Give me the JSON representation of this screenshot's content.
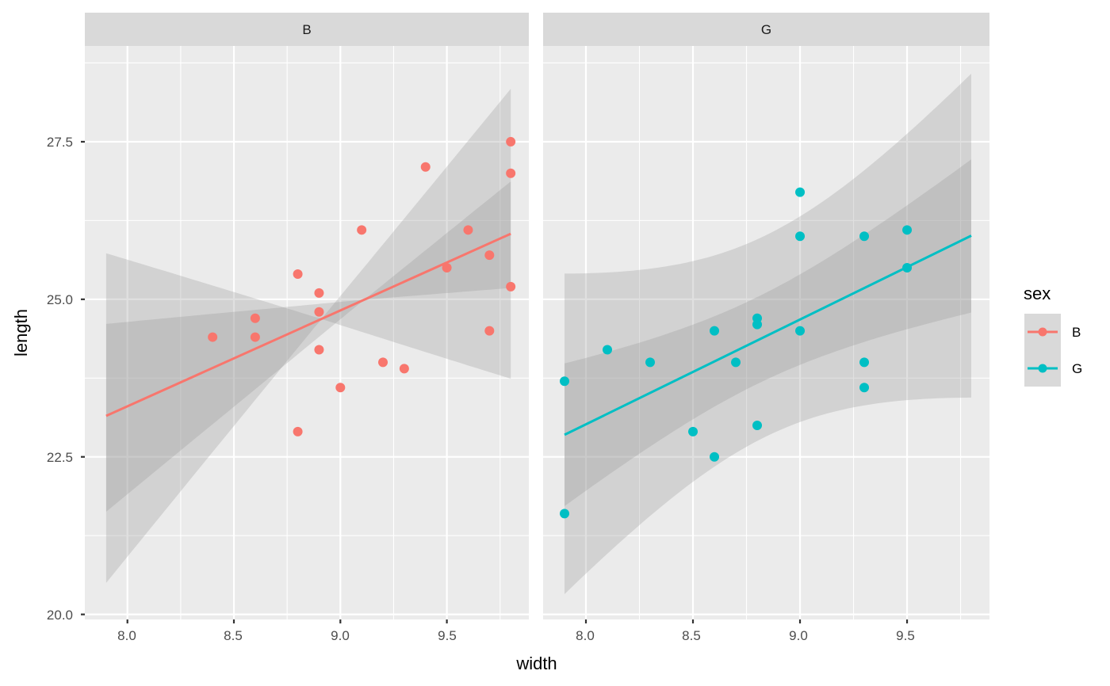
{
  "chart_data": {
    "type": "scatter",
    "title": "",
    "xlabel": "width",
    "ylabel": "length",
    "xlim": [
      7.8,
      9.885
    ],
    "ylim": [
      19.92,
      29.02
    ],
    "x_ticks": [
      "8.0",
      "8.5",
      "9.0",
      "9.5"
    ],
    "y_ticks": [
      "20.0",
      "22.5",
      "25.0",
      "27.5"
    ],
    "grid": true,
    "facet_by": "sex",
    "legend": {
      "title": "sex",
      "position": "right",
      "entries": [
        {
          "label": "B",
          "color": "#F8766D"
        },
        {
          "label": "G",
          "color": "#00BFC4"
        }
      ]
    },
    "panels": [
      {
        "strip": "B",
        "color": "#F8766D",
        "points": [
          {
            "x": 8.4,
            "y": 24.4
          },
          {
            "x": 8.6,
            "y": 24.7
          },
          {
            "x": 8.6,
            "y": 24.4
          },
          {
            "x": 8.8,
            "y": 25.4
          },
          {
            "x": 8.8,
            "y": 22.9
          },
          {
            "x": 8.9,
            "y": 25.1
          },
          {
            "x": 8.9,
            "y": 24.8
          },
          {
            "x": 8.9,
            "y": 24.2
          },
          {
            "x": 9.0,
            "y": 23.6
          },
          {
            "x": 9.1,
            "y": 26.1
          },
          {
            "x": 9.2,
            "y": 24.0
          },
          {
            "x": 9.3,
            "y": 23.9
          },
          {
            "x": 9.4,
            "y": 27.1
          },
          {
            "x": 9.5,
            "y": 25.5
          },
          {
            "x": 9.6,
            "y": 26.1
          },
          {
            "x": 9.7,
            "y": 25.7
          },
          {
            "x": 9.7,
            "y": 24.5
          },
          {
            "x": 9.8,
            "y": 27.5
          },
          {
            "x": 9.8,
            "y": 27.0
          },
          {
            "x": 9.8,
            "y": 25.2
          }
        ],
        "fit": {
          "x_range": [
            7.9,
            9.8
          ],
          "line": [
            23.15,
            26.04
          ],
          "confidence_lower": [
            21.63,
            25.18
          ],
          "confidence_upper": [
            24.61,
            26.87
          ],
          "prediction_lower": [
            20.5,
            23.74
          ],
          "prediction_upper": [
            25.73,
            28.34
          ]
        }
      },
      {
        "strip": "G",
        "color": "#00BFC4",
        "points": [
          {
            "x": 7.9,
            "y": 23.7
          },
          {
            "x": 7.9,
            "y": 21.6
          },
          {
            "x": 8.1,
            "y": 24.2
          },
          {
            "x": 8.3,
            "y": 24.0
          },
          {
            "x": 8.5,
            "y": 22.9
          },
          {
            "x": 8.6,
            "y": 24.5
          },
          {
            "x": 8.6,
            "y": 22.5
          },
          {
            "x": 8.7,
            "y": 24.0
          },
          {
            "x": 8.8,
            "y": 24.7
          },
          {
            "x": 8.8,
            "y": 24.6
          },
          {
            "x": 8.8,
            "y": 23.0
          },
          {
            "x": 9.0,
            "y": 26.7
          },
          {
            "x": 9.0,
            "y": 26.0
          },
          {
            "x": 9.0,
            "y": 24.5
          },
          {
            "x": 9.3,
            "y": 26.0
          },
          {
            "x": 9.3,
            "y": 24.0
          },
          {
            "x": 9.3,
            "y": 23.6
          },
          {
            "x": 9.5,
            "y": 26.1
          },
          {
            "x": 9.5,
            "y": 25.5
          }
        ],
        "fit": {
          "x_range": [
            7.9,
            9.8
          ],
          "line": [
            22.85,
            26.01
          ],
          "confidence_lower": [
            21.76,
            24.79
          ],
          "confidence_upper": [
            23.94,
            27.22
          ],
          "prediction_lower": [
            20.34,
            23.44
          ],
          "prediction_upper": [
            25.39,
            28.58
          ]
        }
      }
    ]
  },
  "colors": {
    "panel_bg": "#EBEBEB",
    "strip_bg": "#D9D9D9",
    "grid_major": "#FFFFFF",
    "ribbon": "#999999",
    "legend_key_bg": "#D9D9D9"
  }
}
